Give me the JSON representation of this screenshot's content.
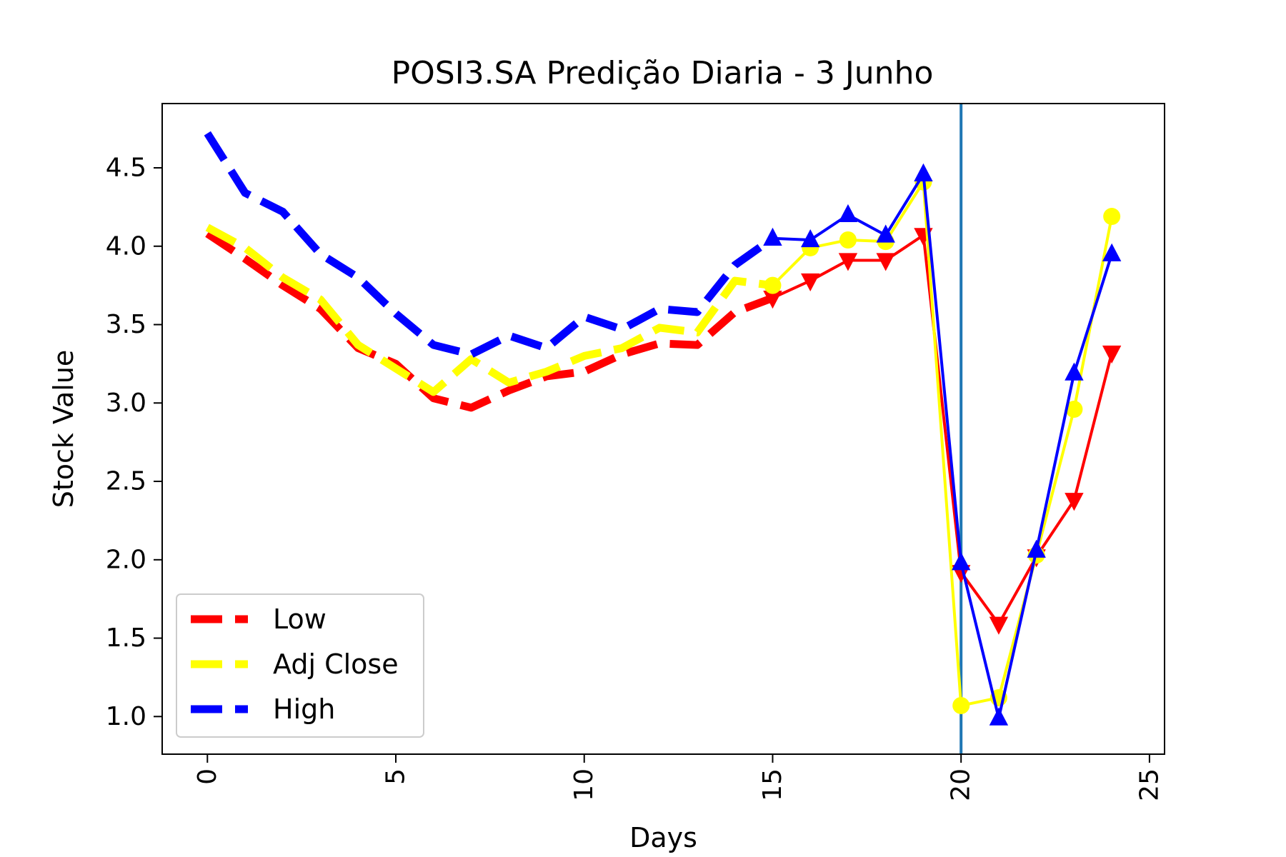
{
  "chart_data": {
    "type": "line",
    "title": "POSI3.SA Predição Diaria - 3 Junho",
    "xlabel": "Days",
    "ylabel": "Stock Value",
    "xlim": [
      -1.2,
      25.4
    ],
    "ylim": [
      0.76,
      4.91
    ],
    "xticks": [
      0,
      5,
      10,
      15,
      20,
      25
    ],
    "xtick_labels": [
      "0",
      "5",
      "10",
      "15",
      "20",
      "25"
    ],
    "yticks": [
      1.0,
      1.5,
      2.0,
      2.5,
      3.0,
      3.5,
      4.0,
      4.5
    ],
    "ytick_labels": [
      "1.0",
      "1.5",
      "2.0",
      "2.5",
      "3.0",
      "3.5",
      "4.0",
      "4.5"
    ],
    "xtick_rotation": "vertical",
    "grid": false,
    "legend_position": "lower-left",
    "vline": {
      "x": 20,
      "color": "#1f77b4"
    },
    "series": [
      {
        "name": "Low",
        "color": "#ff0000",
        "marker": "triangle-down",
        "x": [
          0,
          1,
          2,
          3,
          4,
          5,
          6,
          7,
          8,
          9,
          10,
          11,
          12,
          13,
          14,
          15,
          16,
          17,
          18,
          19,
          20,
          21,
          22,
          23,
          24
        ],
        "y": [
          4.08,
          3.92,
          3.75,
          3.6,
          3.35,
          3.25,
          3.03,
          2.97,
          3.08,
          3.17,
          3.2,
          3.31,
          3.38,
          3.37,
          3.58,
          3.67,
          3.78,
          3.91,
          3.91,
          4.07,
          1.92,
          1.59,
          2.02,
          2.38,
          3.32
        ],
        "solid_from": 15
      },
      {
        "name": "Adj Close",
        "color": "#ffff00",
        "marker": "circle",
        "x": [
          0,
          1,
          2,
          3,
          4,
          5,
          6,
          7,
          8,
          9,
          10,
          11,
          12,
          13,
          14,
          15,
          16,
          17,
          18,
          19,
          20,
          21,
          22,
          23,
          24
        ],
        "y": [
          4.12,
          3.99,
          3.8,
          3.66,
          3.37,
          3.22,
          3.07,
          3.28,
          3.13,
          3.2,
          3.3,
          3.35,
          3.48,
          3.45,
          3.78,
          3.75,
          3.99,
          4.04,
          4.03,
          4.41,
          1.07,
          1.12,
          2.03,
          2.96,
          4.19
        ],
        "solid_from": 15
      },
      {
        "name": "High",
        "color": "#0000ff",
        "marker": "triangle-up",
        "x": [
          0,
          1,
          2,
          3,
          4,
          5,
          6,
          7,
          8,
          9,
          10,
          11,
          12,
          13,
          14,
          15,
          16,
          17,
          18,
          19,
          20,
          21,
          22,
          23,
          24
        ],
        "y": [
          4.72,
          4.34,
          4.22,
          3.95,
          3.8,
          3.57,
          3.37,
          3.31,
          3.43,
          3.35,
          3.55,
          3.47,
          3.6,
          3.58,
          3.88,
          4.05,
          4.04,
          4.2,
          4.07,
          4.46,
          1.98,
          0.99,
          2.06,
          3.19,
          3.95
        ],
        "solid_from": 15
      }
    ]
  }
}
